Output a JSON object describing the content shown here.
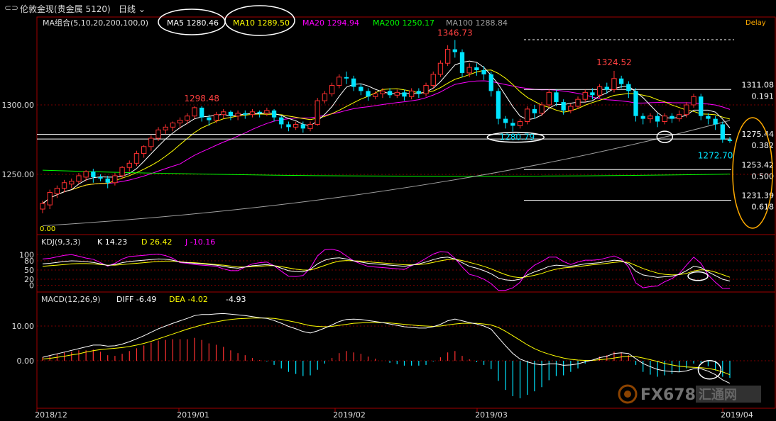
{
  "header": {
    "instrument": "伦敦金现(贵金属 5120)",
    "period": "日线",
    "delay": "Delay"
  },
  "colors": {
    "up": "#ff3030",
    "down": "#00e5ff",
    "ma5": "#ffffff",
    "ma10": "#ffff00",
    "ma20": "#ff00ff",
    "ma200": "#00ff00",
    "ma100": "#a0a0a0",
    "grid": "#7a0000",
    "fib_circle": "#ffaa00"
  },
  "legend_ma": {
    "group": "MA组合(5,10,20,200,100,0)",
    "ma5": "MA5 1280.46",
    "ma10": "MA10 1289.50",
    "ma20": "MA20 1294.94",
    "ma200": "MA200 1250.17",
    "ma100": "MA100 1288.84"
  },
  "legend_kdj": {
    "name": "KDJ(9,3,3)",
    "k": "K 14.23",
    "d": "D 26.42",
    "j": "J -10.16"
  },
  "legend_macd": {
    "name": "MACD(12,26,9)",
    "diff": "DIFF -6.49",
    "dea": "DEA -4.02",
    "macd": "-4.93"
  },
  "chart_data": [
    {
      "type": "candlestick",
      "x_axis": [
        "2018/12",
        "2019/01",
        "2019/02",
        "2019/03",
        "2019/04"
      ],
      "y_ticks": [
        "1300.00",
        "1250.00"
      ],
      "ylim": [
        1215,
        1360
      ],
      "candles": [
        [
          1225,
          1229,
          1222,
          1231
        ],
        [
          1228,
          1237,
          1225,
          1239
        ],
        [
          1236,
          1240,
          1233,
          1242
        ],
        [
          1240,
          1244,
          1237,
          1246
        ],
        [
          1243,
          1245,
          1240,
          1247
        ],
        [
          1245,
          1249,
          1243,
          1251
        ],
        [
          1248,
          1252,
          1245,
          1253
        ],
        [
          1252,
          1248,
          1244,
          1254
        ],
        [
          1248,
          1247,
          1245,
          1250
        ],
        [
          1247,
          1244,
          1240,
          1249
        ],
        [
          1244,
          1249,
          1242,
          1251
        ],
        [
          1249,
          1255,
          1247,
          1256
        ],
        [
          1255,
          1258,
          1252,
          1260
        ],
        [
          1258,
          1265,
          1256,
          1267
        ],
        [
          1265,
          1270,
          1262,
          1271
        ],
        [
          1270,
          1276,
          1267,
          1278
        ],
        [
          1276,
          1282,
          1274,
          1284
        ],
        [
          1282,
          1284,
          1279,
          1286
        ],
        [
          1284,
          1287,
          1281,
          1288
        ],
        [
          1287,
          1289,
          1283,
          1291
        ],
        [
          1289,
          1292,
          1286,
          1294
        ],
        [
          1292,
          1298,
          1290,
          1299
        ],
        [
          1298,
          1291,
          1288,
          1299
        ],
        [
          1291,
          1289,
          1285,
          1293
        ],
        [
          1289,
          1293,
          1287,
          1295
        ],
        [
          1293,
          1295,
          1290,
          1297
        ],
        [
          1295,
          1292,
          1289,
          1296
        ],
        [
          1292,
          1294,
          1289,
          1296
        ],
        [
          1294,
          1293,
          1290,
          1296
        ],
        [
          1293,
          1295,
          1291,
          1297
        ],
        [
          1295,
          1294,
          1291,
          1296
        ],
        [
          1294,
          1296,
          1292,
          1298
        ],
        [
          1296,
          1291,
          1288,
          1297
        ],
        [
          1291,
          1286,
          1283,
          1292
        ],
        [
          1286,
          1284,
          1281,
          1288
        ],
        [
          1284,
          1286,
          1282,
          1288
        ],
        [
          1286,
          1283,
          1280,
          1288
        ],
        [
          1283,
          1286,
          1281,
          1288
        ],
        [
          1286,
          1303,
          1285,
          1305
        ],
        [
          1303,
          1308,
          1301,
          1310
        ],
        [
          1308,
          1314,
          1306,
          1316
        ],
        [
          1314,
          1320,
          1312,
          1322
        ],
        [
          1320,
          1319,
          1315,
          1324
        ],
        [
          1319,
          1313,
          1310,
          1321
        ],
        [
          1313,
          1310,
          1307,
          1315
        ],
        [
          1310,
          1306,
          1303,
          1312
        ],
        [
          1306,
          1308,
          1304,
          1310
        ],
        [
          1308,
          1310,
          1305,
          1312
        ],
        [
          1310,
          1307,
          1305,
          1312
        ],
        [
          1307,
          1309,
          1305,
          1311
        ],
        [
          1309,
          1306,
          1303,
          1311
        ],
        [
          1306,
          1310,
          1304,
          1312
        ],
        [
          1310,
          1308,
          1305,
          1312
        ],
        [
          1308,
          1314,
          1306,
          1316
        ],
        [
          1314,
          1322,
          1312,
          1324
        ],
        [
          1322,
          1330,
          1320,
          1332
        ],
        [
          1330,
          1340,
          1328,
          1343
        ],
        [
          1340,
          1338,
          1334,
          1346.73
        ],
        [
          1338,
          1323,
          1320,
          1340
        ],
        [
          1323,
          1327,
          1320,
          1330
        ],
        [
          1327,
          1325,
          1321,
          1330
        ],
        [
          1325,
          1322,
          1318,
          1328
        ],
        [
          1322,
          1310,
          1306,
          1324
        ],
        [
          1310,
          1290,
          1286,
          1312
        ],
        [
          1290,
          1287,
          1283,
          1292
        ],
        [
          1287,
          1285,
          1280.79,
          1290
        ],
        [
          1285,
          1288,
          1283,
          1290
        ],
        [
          1288,
          1297,
          1286,
          1299
        ],
        [
          1297,
          1294,
          1290,
          1300
        ],
        [
          1294,
          1300,
          1292,
          1302
        ],
        [
          1300,
          1309,
          1298,
          1311
        ],
        [
          1309,
          1302,
          1299,
          1311
        ],
        [
          1302,
          1296,
          1293,
          1304
        ],
        [
          1296,
          1299,
          1294,
          1301
        ],
        [
          1299,
          1304,
          1297,
          1306
        ],
        [
          1304,
          1309,
          1302,
          1311
        ],
        [
          1309,
          1307,
          1304,
          1312
        ],
        [
          1307,
          1313,
          1305,
          1315
        ],
        [
          1313,
          1311,
          1308,
          1316
        ],
        [
          1311,
          1319,
          1309,
          1324.52
        ],
        [
          1319,
          1315,
          1312,
          1321
        ],
        [
          1315,
          1310,
          1305,
          1317
        ],
        [
          1310,
          1292,
          1288,
          1312
        ],
        [
          1292,
          1290,
          1286,
          1294
        ],
        [
          1290,
          1292,
          1287,
          1294
        ],
        [
          1292,
          1288,
          1284,
          1294
        ],
        [
          1288,
          1292,
          1286,
          1294
        ],
        [
          1292,
          1290,
          1287,
          1294
        ],
        [
          1290,
          1293,
          1288,
          1296
        ],
        [
          1293,
          1300,
          1291,
          1302
        ],
        [
          1300,
          1306,
          1298,
          1308
        ],
        [
          1306,
          1292,
          1289,
          1308
        ],
        [
          1292,
          1290,
          1286,
          1294
        ],
        [
          1290,
          1286,
          1282,
          1292
        ],
        [
          1286,
          1275,
          1272.7,
          1288
        ],
        [
          1275,
          1274,
          1272.7,
          1277
        ]
      ],
      "annotations": [
        "1298.48",
        "1346.73",
        "1324.52",
        "1280.79",
        "1272.70",
        "0.00"
      ],
      "fib_levels": [
        {
          "price": "1311.08",
          "ratio": "0.191"
        },
        {
          "price": "1275.44",
          "ratio": "0.382"
        },
        {
          "price": "1253.42",
          "ratio": "0.500"
        },
        {
          "price": "1231.39",
          "ratio": "0.618"
        }
      ],
      "ma200_endpoints": [
        1253,
        1250.17
      ],
      "ma100_endpoints": [
        1213,
        1288.84
      ]
    },
    {
      "type": "line",
      "name": "KDJ",
      "y_ticks": [
        "100",
        "80",
        "50",
        "20",
        "0"
      ],
      "ylim": [
        -10,
        110
      ],
      "k": [
        70,
        72,
        75,
        78,
        80,
        79,
        77,
        75,
        70,
        65,
        68,
        74,
        78,
        80,
        82,
        84,
        86,
        85,
        82,
        76,
        74,
        72,
        70,
        68,
        66,
        62,
        58,
        56,
        60,
        64,
        66,
        68,
        64,
        56,
        48,
        45,
        44,
        52,
        70,
        82,
        88,
        90,
        86,
        80,
        76,
        72,
        70,
        68,
        66,
        64,
        62,
        66,
        70,
        76,
        84,
        90,
        92,
        86,
        74,
        62,
        56,
        48,
        38,
        24,
        18,
        16,
        20,
        34,
        44,
        52,
        62,
        66,
        64,
        62,
        66,
        70,
        72,
        74,
        78,
        82,
        80,
        70,
        46,
        34,
        30,
        26,
        28,
        30,
        36,
        48,
        62,
        58,
        44,
        32,
        20,
        14.23
      ],
      "d": [
        62,
        64,
        66,
        68,
        70,
        71,
        71,
        70,
        68,
        66,
        66,
        68,
        70,
        72,
        74,
        76,
        78,
        79,
        79,
        77,
        75,
        74,
        72,
        70,
        68,
        66,
        63,
        60,
        60,
        61,
        62,
        64,
        64,
        61,
        57,
        53,
        50,
        50,
        57,
        65,
        73,
        79,
        81,
        80,
        79,
        77,
        75,
        73,
        71,
        69,
        67,
        67,
        68,
        70,
        75,
        80,
        84,
        85,
        81,
        75,
        69,
        62,
        54,
        44,
        35,
        28,
        25,
        28,
        33,
        39,
        47,
        53,
        57,
        59,
        61,
        64,
        67,
        69,
        72,
        75,
        77,
        75,
        65,
        55,
        47,
        40,
        36,
        34,
        35,
        39,
        47,
        51,
        49,
        43,
        35,
        26.42
      ],
      "j": [
        86,
        88,
        93,
        98,
        100,
        95,
        89,
        85,
        74,
        63,
        72,
        86,
        94,
        96,
        98,
        100,
        102,
        97,
        88,
        74,
        72,
        68,
        66,
        64,
        62,
        54,
        48,
        48,
        60,
        70,
        74,
        76,
        64,
        46,
        30,
        29,
        32,
        56,
        96,
        116,
        118,
        112,
        96,
        80,
        70,
        62,
        60,
        58,
        56,
        54,
        52,
        64,
        74,
        88,
        102,
        110,
        108,
        88,
        60,
        36,
        30,
        20,
        6,
        -16,
        -16,
        -8,
        10,
        46,
        66,
        78,
        92,
        92,
        78,
        68,
        76,
        82,
        82,
        84,
        90,
        96,
        86,
        60,
        8,
        -8,
        -4,
        -2,
        12,
        22,
        38,
        66,
        92,
        72,
        34,
        10,
        -10,
        -10.16
      ]
    },
    {
      "type": "bar+line",
      "name": "MACD",
      "y_ticks": [
        "10.00",
        "0.00"
      ],
      "ylim": [
        -14,
        18
      ],
      "diff": [
        1,
        1.5,
        2,
        2.5,
        3,
        3.5,
        4,
        4.5,
        4.5,
        4.2,
        4.3,
        4.8,
        5.5,
        6.3,
        7.2,
        8.2,
        9.2,
        10,
        10.8,
        11.5,
        12.2,
        13,
        13.3,
        13.3,
        13.5,
        13.6,
        13.4,
        13.2,
        13,
        12.7,
        12.4,
        12.2,
        11.6,
        10.8,
        9.9,
        9.2,
        8.4,
        8,
        8.6,
        9.4,
        10.3,
        11.3,
        11.9,
        12,
        11.9,
        11.6,
        11.3,
        11,
        10.6,
        10.2,
        9.8,
        9.6,
        9.4,
        9.4,
        9.8,
        10.5,
        11.5,
        12,
        11.5,
        11,
        10.6,
        10,
        9.1,
        6.7,
        4.3,
        2.1,
        0.5,
        -0.3,
        -0.9,
        -1.2,
        -0.9,
        -0.9,
        -1.3,
        -1.2,
        -0.9,
        -0.3,
        0.2,
        0.9,
        1.3,
        2.1,
        2.3,
        2.1,
        0.6,
        -0.8,
        -1.7,
        -2.5,
        -2.9,
        -3.1,
        -3.2,
        -2.9,
        -2.3,
        -2.3,
        -3,
        -4,
        -5.5,
        -6.49
      ],
      "dea": [
        0.5,
        0.7,
        1,
        1.3,
        1.7,
        2,
        2.5,
        2.9,
        3.2,
        3.4,
        3.6,
        3.8,
        4.1,
        4.5,
        5,
        5.6,
        6.3,
        7,
        7.7,
        8.4,
        9.1,
        9.7,
        10.3,
        10.8,
        11.2,
        11.6,
        11.9,
        12.1,
        12.2,
        12.3,
        12.3,
        12.3,
        12.2,
        11.9,
        11.5,
        11.1,
        10.6,
        10.1,
        9.9,
        9.8,
        9.9,
        10.2,
        10.5,
        10.8,
        10.9,
        11,
        11,
        11,
        10.9,
        10.7,
        10.5,
        10.3,
        10.1,
        10,
        9.9,
        10,
        10.3,
        10.6,
        10.8,
        10.8,
        10.8,
        10.6,
        10.3,
        9.6,
        8.5,
        7.2,
        5.9,
        4.6,
        3.5,
        2.6,
        1.9,
        1.3,
        0.8,
        0.4,
        0.2,
        0.1,
        0.1,
        0.3,
        0.5,
        0.8,
        1.1,
        1.3,
        1.2,
        0.8,
        0.3,
        -0.2,
        -0.8,
        -1.2,
        -1.6,
        -1.8,
        -1.9,
        -2,
        -2.2,
        -2.6,
        -3.2,
        -4.02
      ],
      "histogram_note": "macd = 2*(diff-dea)"
    }
  ]
}
